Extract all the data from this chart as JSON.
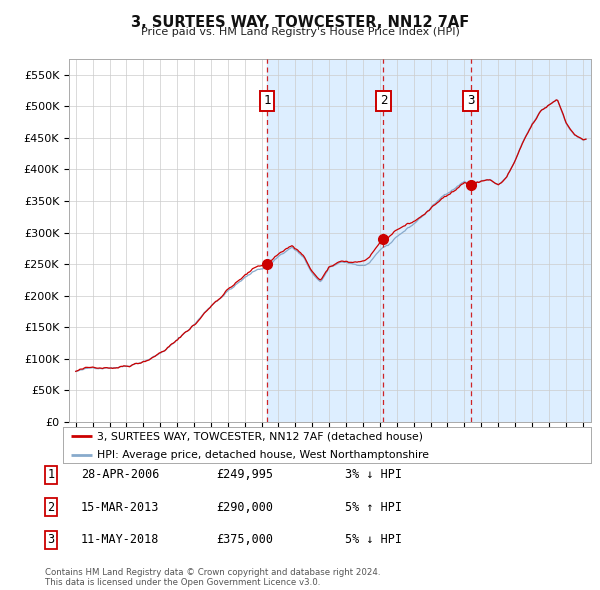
{
  "title": "3, SURTEES WAY, TOWCESTER, NN12 7AF",
  "subtitle": "Price paid vs. HM Land Registry's House Price Index (HPI)",
  "ylabel_ticks": [
    "£0",
    "£50K",
    "£100K",
    "£150K",
    "£200K",
    "£250K",
    "£300K",
    "£350K",
    "£400K",
    "£450K",
    "£500K",
    "£550K"
  ],
  "ytick_values": [
    0,
    50000,
    100000,
    150000,
    200000,
    250000,
    300000,
    350000,
    400000,
    450000,
    500000,
    550000
  ],
  "ylim": [
    0,
    575000
  ],
  "xlim_start": 1994.6,
  "xlim_end": 2025.5,
  "bg_color": "#dce9f5",
  "plot_bg": "#ffffff",
  "grid_color": "#cccccc",
  "red_line_color": "#cc0000",
  "blue_line_color": "#88aacc",
  "shade_color": "#dce9f5",
  "dashed_line_color": "#cc0000",
  "sale_dates": [
    2006.33,
    2013.21,
    2018.38
  ],
  "sale_prices": [
    249995,
    290000,
    375000
  ],
  "sale_labels": [
    "1",
    "2",
    "3"
  ],
  "legend_red_label": "3, SURTEES WAY, TOWCESTER, NN12 7AF (detached house)",
  "legend_blue_label": "HPI: Average price, detached house, West Northamptonshire",
  "table_rows": [
    [
      "1",
      "28-APR-2006",
      "£249,995",
      "3% ↓ HPI"
    ],
    [
      "2",
      "15-MAR-2013",
      "£290,000",
      "5% ↑ HPI"
    ],
    [
      "3",
      "11-MAY-2018",
      "£375,000",
      "5% ↓ HPI"
    ]
  ],
  "footer": "Contains HM Land Registry data © Crown copyright and database right 2024.\nThis data is licensed under the Open Government Licence v3.0."
}
